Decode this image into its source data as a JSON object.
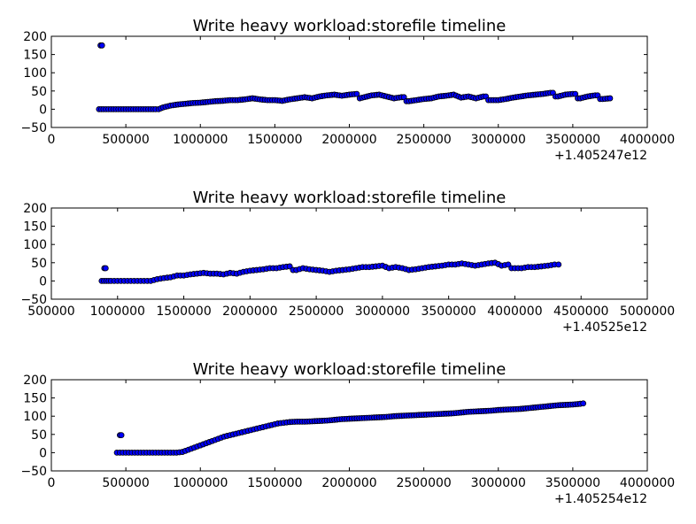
{
  "chart_data": [
    {
      "type": "scatter",
      "title": "Write heavy workload:storefile timeline",
      "xlabel": "",
      "ylabel": "",
      "xlim": [
        0,
        4000000
      ],
      "ylim": [
        -50,
        200
      ],
      "x_ticks": [
        "0",
        "500000",
        "1000000",
        "1500000",
        "2000000",
        "2500000",
        "3000000",
        "3500000",
        "4000000"
      ],
      "y_ticks": [
        "200",
        "150",
        "100",
        "50",
        "0",
        "−50"
      ],
      "x_offset_label": "+1.405247e12",
      "grid": false,
      "marker_color": "#0000ff",
      "series": [
        {
          "points": [
            [
              330000,
              175
            ],
            [
              340000,
              175
            ],
            [
              320000,
              0
            ],
            [
              350000,
              0
            ],
            [
              400000,
              0
            ],
            [
              450000,
              0
            ],
            [
              500000,
              0
            ],
            [
              550000,
              0
            ],
            [
              600000,
              0
            ],
            [
              650000,
              0
            ],
            [
              700000,
              0
            ],
            [
              720000,
              0
            ],
            [
              750000,
              5
            ],
            [
              800000,
              10
            ],
            [
              850000,
              13
            ],
            [
              900000,
              15
            ],
            [
              950000,
              17
            ],
            [
              1000000,
              18
            ],
            [
              1050000,
              20
            ],
            [
              1100000,
              22
            ],
            [
              1150000,
              23
            ],
            [
              1200000,
              25
            ],
            [
              1250000,
              25
            ],
            [
              1300000,
              27
            ],
            [
              1350000,
              30
            ],
            [
              1400000,
              27
            ],
            [
              1450000,
              25
            ],
            [
              1500000,
              25
            ],
            [
              1550000,
              23
            ],
            [
              1600000,
              27
            ],
            [
              1650000,
              30
            ],
            [
              1700000,
              33
            ],
            [
              1750000,
              30
            ],
            [
              1800000,
              35
            ],
            [
              1850000,
              38
            ],
            [
              1900000,
              40
            ],
            [
              1950000,
              37
            ],
            [
              2000000,
              40
            ],
            [
              2050000,
              42
            ],
            [
              2070000,
              30
            ],
            [
              2150000,
              38
            ],
            [
              2200000,
              40
            ],
            [
              2250000,
              35
            ],
            [
              2300000,
              30
            ],
            [
              2350000,
              33
            ],
            [
              2400000,
              22
            ],
            [
              2450000,
              25
            ],
            [
              2500000,
              28
            ],
            [
              2550000,
              30
            ],
            [
              2600000,
              35
            ],
            [
              2650000,
              37
            ],
            [
              2700000,
              40
            ],
            [
              2750000,
              32
            ],
            [
              2800000,
              35
            ],
            [
              2850000,
              30
            ],
            [
              2900000,
              35
            ],
            [
              2950000,
              25
            ],
            [
              3000000,
              25
            ],
            [
              3050000,
              28
            ],
            [
              3100000,
              32
            ],
            [
              3150000,
              35
            ],
            [
              3200000,
              38
            ],
            [
              3250000,
              40
            ],
            [
              3300000,
              42
            ],
            [
              3350000,
              45
            ],
            [
              3400000,
              35
            ],
            [
              3450000,
              40
            ],
            [
              3500000,
              42
            ],
            [
              3550000,
              30
            ],
            [
              3600000,
              35
            ],
            [
              3650000,
              38
            ],
            [
              3700000,
              28
            ],
            [
              3750000,
              30
            ]
          ]
        }
      ]
    },
    {
      "type": "scatter",
      "title": "Write heavy workload:storefile timeline",
      "xlabel": "",
      "ylabel": "",
      "xlim": [
        500000,
        5000000
      ],
      "ylim": [
        -50,
        200
      ],
      "x_ticks": [
        "500000",
        "1000000",
        "1500000",
        "2000000",
        "2500000",
        "3000000",
        "3500000",
        "4000000",
        "4500000",
        "5000000"
      ],
      "y_ticks": [
        "200",
        "150",
        "100",
        "50",
        "0",
        "−50"
      ],
      "x_offset_label": "+1.40525e12",
      "grid": false,
      "marker_color": "#0000ff",
      "series": [
        {
          "points": [
            [
              900000,
              35
            ],
            [
              910000,
              35
            ],
            [
              880000,
              0
            ],
            [
              950000,
              0
            ],
            [
              1000000,
              0
            ],
            [
              1050000,
              0
            ],
            [
              1100000,
              0
            ],
            [
              1150000,
              0
            ],
            [
              1200000,
              0
            ],
            [
              1250000,
              0
            ],
            [
              1300000,
              5
            ],
            [
              1350000,
              8
            ],
            [
              1400000,
              10
            ],
            [
              1450000,
              15
            ],
            [
              1500000,
              15
            ],
            [
              1550000,
              18
            ],
            [
              1600000,
              20
            ],
            [
              1650000,
              22
            ],
            [
              1700000,
              20
            ],
            [
              1750000,
              20
            ],
            [
              1800000,
              18
            ],
            [
              1850000,
              22
            ],
            [
              1900000,
              20
            ],
            [
              1950000,
              25
            ],
            [
              2000000,
              28
            ],
            [
              2050000,
              30
            ],
            [
              2100000,
              32
            ],
            [
              2150000,
              35
            ],
            [
              2200000,
              35
            ],
            [
              2250000,
              38
            ],
            [
              2300000,
              40
            ],
            [
              2350000,
              30
            ],
            [
              2400000,
              35
            ],
            [
              2450000,
              32
            ],
            [
              2500000,
              30
            ],
            [
              2550000,
              28
            ],
            [
              2600000,
              25
            ],
            [
              2650000,
              28
            ],
            [
              2700000,
              30
            ],
            [
              2750000,
              32
            ],
            [
              2800000,
              35
            ],
            [
              2850000,
              38
            ],
            [
              2900000,
              38
            ],
            [
              2950000,
              40
            ],
            [
              3000000,
              42
            ],
            [
              3050000,
              35
            ],
            [
              3100000,
              38
            ],
            [
              3150000,
              35
            ],
            [
              3200000,
              30
            ],
            [
              3250000,
              32
            ],
            [
              3300000,
              35
            ],
            [
              3350000,
              38
            ],
            [
              3400000,
              40
            ],
            [
              3450000,
              42
            ],
            [
              3500000,
              45
            ],
            [
              3550000,
              45
            ],
            [
              3600000,
              48
            ],
            [
              3650000,
              45
            ],
            [
              3700000,
              42
            ],
            [
              3750000,
              45
            ],
            [
              3800000,
              48
            ],
            [
              3850000,
              50
            ],
            [
              3900000,
              42
            ],
            [
              3950000,
              45
            ],
            [
              4000000,
              35
            ],
            [
              4050000,
              35
            ],
            [
              4100000,
              38
            ],
            [
              4150000,
              38
            ],
            [
              4200000,
              40
            ],
            [
              4250000,
              42
            ],
            [
              4300000,
              45
            ],
            [
              4330000,
              45
            ]
          ]
        }
      ]
    },
    {
      "type": "scatter",
      "title": "Write heavy workload:storefile timeline",
      "xlabel": "",
      "ylabel": "",
      "xlim": [
        0,
        4000000
      ],
      "ylim": [
        -50,
        200
      ],
      "x_ticks": [
        "0",
        "500000",
        "1000000",
        "1500000",
        "2000000",
        "2500000",
        "3000000",
        "3500000",
        "4000000"
      ],
      "y_ticks": [
        "200",
        "150",
        "100",
        "50",
        "0",
        "−50"
      ],
      "x_offset_label": "+1.405254e12",
      "grid": false,
      "marker_color": "#0000ff",
      "series": [
        {
          "points": [
            [
              460000,
              48
            ],
            [
              470000,
              48
            ],
            [
              440000,
              0
            ],
            [
              480000,
              0
            ],
            [
              520000,
              0
            ],
            [
              560000,
              0
            ],
            [
              600000,
              0
            ],
            [
              640000,
              0
            ],
            [
              680000,
              0
            ],
            [
              720000,
              0
            ],
            [
              760000,
              0
            ],
            [
              800000,
              0
            ],
            [
              840000,
              0
            ],
            [
              880000,
              2
            ],
            [
              920000,
              8
            ],
            [
              960000,
              14
            ],
            [
              1000000,
              20
            ],
            [
              1040000,
              26
            ],
            [
              1080000,
              32
            ],
            [
              1120000,
              38
            ],
            [
              1160000,
              44
            ],
            [
              1200000,
              48
            ],
            [
              1240000,
              52
            ],
            [
              1280000,
              56
            ],
            [
              1320000,
              60
            ],
            [
              1360000,
              64
            ],
            [
              1400000,
              68
            ],
            [
              1440000,
              72
            ],
            [
              1480000,
              76
            ],
            [
              1520000,
              80
            ],
            [
              1560000,
              82
            ],
            [
              1600000,
              84
            ],
            [
              1650000,
              85
            ],
            [
              1700000,
              85
            ],
            [
              1750000,
              86
            ],
            [
              1800000,
              87
            ],
            [
              1850000,
              88
            ],
            [
              1900000,
              90
            ],
            [
              1950000,
              92
            ],
            [
              2000000,
              93
            ],
            [
              2050000,
              94
            ],
            [
              2100000,
              95
            ],
            [
              2150000,
              96
            ],
            [
              2200000,
              97
            ],
            [
              2250000,
              98
            ],
            [
              2300000,
              100
            ],
            [
              2350000,
              101
            ],
            [
              2400000,
              102
            ],
            [
              2450000,
              103
            ],
            [
              2500000,
              104
            ],
            [
              2550000,
              105
            ],
            [
              2600000,
              106
            ],
            [
              2650000,
              107
            ],
            [
              2700000,
              108
            ],
            [
              2750000,
              110
            ],
            [
              2800000,
              112
            ],
            [
              2850000,
              113
            ],
            [
              2900000,
              114
            ],
            [
              2950000,
              115
            ],
            [
              3000000,
              117
            ],
            [
              3050000,
              118
            ],
            [
              3100000,
              119
            ],
            [
              3150000,
              120
            ],
            [
              3200000,
              122
            ],
            [
              3250000,
              124
            ],
            [
              3300000,
              126
            ],
            [
              3350000,
              128
            ],
            [
              3400000,
              130
            ],
            [
              3450000,
              131
            ],
            [
              3500000,
              132
            ],
            [
              3550000,
              134
            ],
            [
              3570000,
              135
            ]
          ]
        }
      ]
    }
  ]
}
